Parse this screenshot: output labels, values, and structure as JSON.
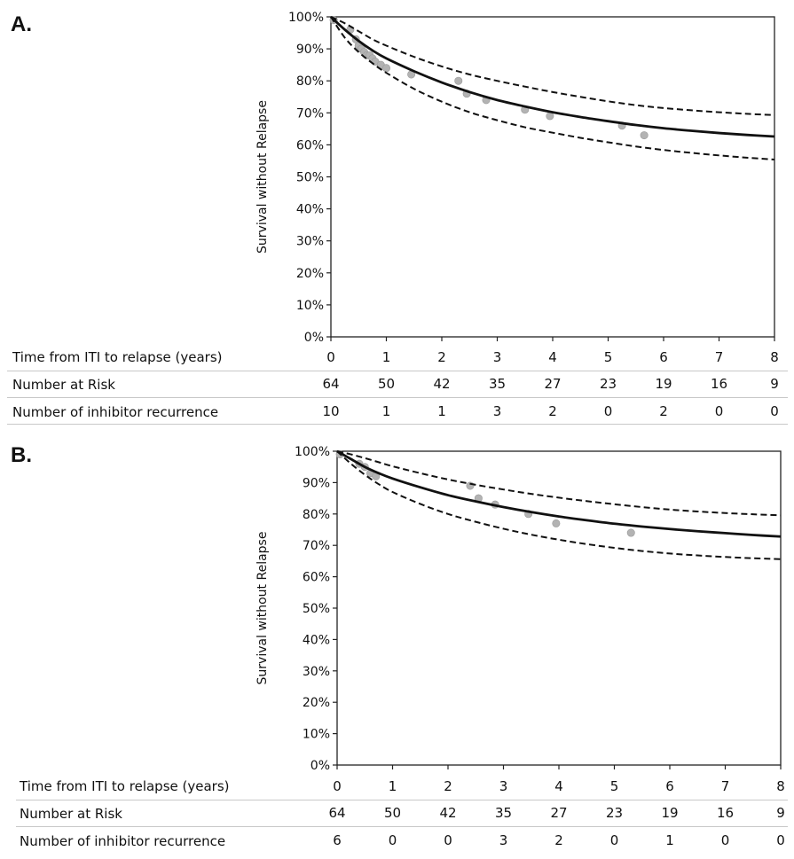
{
  "chart_data": [
    {
      "panel_label": "A.",
      "type": "scatter",
      "title": "",
      "xlabel": "Time from ITI to relapse (years)",
      "ylabel": "Survival without Relapse",
      "xlim": [
        0,
        8
      ],
      "ylim": [
        0,
        100
      ],
      "x_ticks": [
        "0",
        "1",
        "2",
        "3",
        "4",
        "5",
        "6",
        "7",
        "8"
      ],
      "y_ticks": [
        "0%",
        "10%",
        "20%",
        "30%",
        "40%",
        "50%",
        "60%",
        "70%",
        "80%",
        "90%",
        "100%"
      ],
      "grid": false,
      "series": [
        {
          "kind": "points",
          "color": "#b3b3b3",
          "x": [
            0.05,
            0.35,
            0.45,
            0.5,
            0.55,
            0.6,
            0.65,
            0.7,
            0.75,
            0.8,
            0.9,
            1.0,
            1.45,
            2.3,
            2.45,
            2.8,
            3.5,
            3.95,
            5.25,
            5.65
          ],
          "y": [
            99,
            96,
            93,
            91,
            90,
            89,
            88,
            88,
            87,
            86,
            85,
            84,
            82,
            80,
            76,
            74,
            71,
            69,
            66,
            63
          ]
        },
        {
          "kind": "fit",
          "style": "solid",
          "color": "#111111",
          "x": [
            0,
            0.25,
            0.5,
            0.75,
            1,
            1.5,
            2,
            2.5,
            3,
            3.5,
            4,
            4.5,
            5,
            5.5,
            6,
            6.5,
            7,
            7.5,
            8
          ],
          "y": [
            100,
            96,
            92.5,
            89.5,
            87,
            83,
            79.5,
            76.5,
            74,
            72,
            70.2,
            68.7,
            67.4,
            66.2,
            65.2,
            64.4,
            63.7,
            63.1,
            62.6
          ]
        },
        {
          "kind": "ci_upper",
          "style": "dashed",
          "color": "#111111",
          "x": [
            0,
            0.25,
            0.5,
            0.75,
            1,
            1.5,
            2,
            2.5,
            3,
            3.5,
            4,
            4.5,
            5,
            5.5,
            6,
            6.5,
            7,
            7.5,
            8
          ],
          "y": [
            100,
            98,
            95.5,
            93,
            91,
            87.5,
            84.5,
            82,
            80,
            78.2,
            76.5,
            75,
            73.6,
            72.4,
            71.5,
            70.8,
            70.2,
            69.7,
            69.3
          ]
        },
        {
          "kind": "ci_lower",
          "style": "dashed",
          "color": "#111111",
          "x": [
            0,
            0.25,
            0.5,
            0.75,
            1,
            1.5,
            2,
            2.5,
            3,
            3.5,
            4,
            4.5,
            5,
            5.5,
            6,
            6.5,
            7,
            7.5,
            8
          ],
          "y": [
            100,
            93.5,
            89,
            85.5,
            82.5,
            77.5,
            73.5,
            70.2,
            67.7,
            65.5,
            63.8,
            62.2,
            60.8,
            59.5,
            58.4,
            57.5,
            56.7,
            56,
            55.4
          ]
        }
      ],
      "table": {
        "columns": [
          "0",
          "1",
          "2",
          "3",
          "4",
          "5",
          "6",
          "7",
          "8"
        ],
        "rows": [
          {
            "label": "Number at Risk",
            "values": [
              "64",
              "50",
              "42",
              "35",
              "27",
              "23",
              "19",
              "16",
              "9"
            ]
          },
          {
            "label": "Number of inhibitor recurrence",
            "values": [
              "10",
              "1",
              "1",
              "3",
              "2",
              "0",
              "2",
              "0",
              "0"
            ]
          }
        ]
      }
    },
    {
      "panel_label": "B.",
      "type": "scatter",
      "title": "",
      "xlabel": "Time from ITI to relapse (years)",
      "ylabel": "Survival without Relapse",
      "xlim": [
        0,
        8
      ],
      "ylim": [
        0,
        100
      ],
      "x_ticks": [
        "0",
        "1",
        "2",
        "3",
        "4",
        "5",
        "6",
        "7",
        "8"
      ],
      "y_ticks": [
        "0%",
        "10%",
        "20%",
        "30%",
        "40%",
        "50%",
        "60%",
        "70%",
        "80%",
        "90%",
        "100%"
      ],
      "grid": false,
      "series": [
        {
          "kind": "points",
          "color": "#b3b3b3",
          "x": [
            0.05,
            0.4,
            0.5,
            0.6,
            0.7,
            2.4,
            2.55,
            2.85,
            3.45,
            3.95,
            5.3
          ],
          "y": [
            99,
            96,
            95,
            93,
            92,
            89,
            85,
            83,
            80,
            77,
            74
          ]
        },
        {
          "kind": "fit",
          "style": "solid",
          "color": "#111111",
          "x": [
            0,
            0.25,
            0.5,
            0.75,
            1,
            1.5,
            2,
            2.5,
            3,
            3.5,
            4,
            4.5,
            5,
            5.5,
            6,
            6.5,
            7,
            7.5,
            8
          ],
          "y": [
            100,
            97.5,
            95,
            93,
            91.3,
            88.5,
            86,
            84,
            82.2,
            80.6,
            79.2,
            78,
            76.9,
            76,
            75.2,
            74.5,
            73.9,
            73.3,
            72.8
          ]
        },
        {
          "kind": "ci_upper",
          "style": "dashed",
          "color": "#111111",
          "x": [
            0,
            0.25,
            0.5,
            0.75,
            1,
            1.5,
            2,
            2.5,
            3,
            3.5,
            4,
            4.5,
            5,
            5.5,
            6,
            6.5,
            7,
            7.5,
            8
          ],
          "y": [
            100,
            99,
            97.8,
            96.5,
            95.2,
            93,
            91,
            89.3,
            87.8,
            86.4,
            85.2,
            84.1,
            83.1,
            82.2,
            81.4,
            80.8,
            80.3,
            79.9,
            79.6
          ]
        },
        {
          "kind": "ci_lower",
          "style": "dashed",
          "color": "#111111",
          "x": [
            0,
            0.25,
            0.5,
            0.75,
            1,
            1.5,
            2,
            2.5,
            3,
            3.5,
            4,
            4.5,
            5,
            5.5,
            6,
            6.5,
            7,
            7.5,
            8
          ],
          "y": [
            100,
            96,
            92.5,
            89.5,
            87,
            83.2,
            80,
            77.5,
            75.3,
            73.4,
            71.8,
            70.4,
            69.2,
            68.2,
            67.4,
            66.8,
            66.3,
            65.9,
            65.6
          ]
        }
      ],
      "table": {
        "columns": [
          "0",
          "1",
          "2",
          "3",
          "4",
          "5",
          "6",
          "7",
          "8"
        ],
        "rows": [
          {
            "label": "Number at Risk",
            "values": [
              "64",
              "50",
              "42",
              "35",
              "27",
              "23",
              "19",
              "16",
              "9"
            ]
          },
          {
            "label": "Number of inhibitor recurrence",
            "values": [
              "6",
              "0",
              "0",
              "3",
              "2",
              "0",
              "1",
              "0",
              "0"
            ]
          }
        ]
      }
    }
  ]
}
